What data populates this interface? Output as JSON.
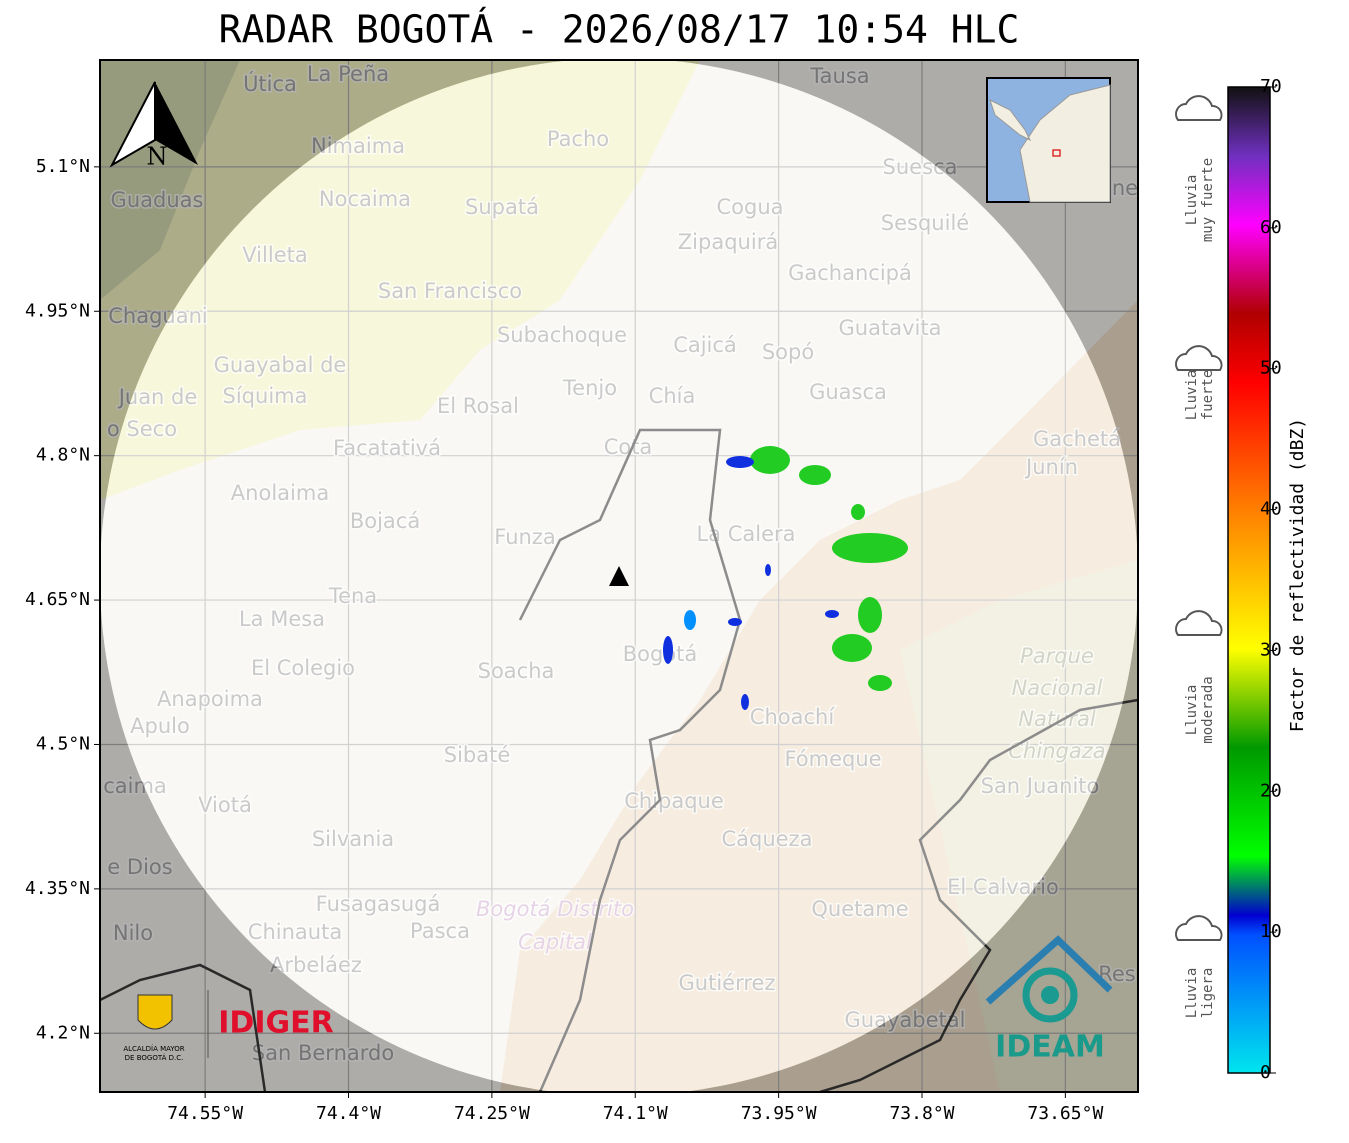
{
  "title": "RADAR BOGOTÁ - 2026/08/17 10:54 HLC",
  "map": {
    "xlim": [
      -74.66,
      -73.574
    ],
    "ylim": [
      4.139,
      5.211
    ],
    "grid": true,
    "xticks": [
      {
        "value": -74.55,
        "label": "74.55°W"
      },
      {
        "value": -74.4,
        "label": "74.4°W"
      },
      {
        "value": -74.25,
        "label": "74.25°W"
      },
      {
        "value": -74.1,
        "label": "74.1°W"
      },
      {
        "value": -73.95,
        "label": "73.95°W"
      },
      {
        "value": -73.8,
        "label": "73.8°W"
      },
      {
        "value": -73.65,
        "label": "73.65°W"
      }
    ],
    "yticks": [
      {
        "value": 5.1,
        "label": "5.1°N"
      },
      {
        "value": 4.95,
        "label": "4.95°N"
      },
      {
        "value": 4.8,
        "label": "4.8°N"
      },
      {
        "value": 4.65,
        "label": "4.65°N"
      },
      {
        "value": 4.5,
        "label": "4.5°N"
      },
      {
        "value": 4.35,
        "label": "4.35°N"
      },
      {
        "value": 4.2,
        "label": "4.2°N"
      }
    ],
    "north": "N",
    "places": [
      "Útica",
      "La Peña",
      "Tausa",
      "Pacho",
      "Nimaima",
      "Guaduas",
      "Nocaima",
      "Supatá",
      "Cogua",
      "Suesca",
      "Sesquilé",
      "Zipaquirá",
      "Villeta",
      "Gachancipá",
      "San Francisco",
      "Chaguani",
      "Guatavita",
      "Subachoque",
      "Cajicá",
      "Sopó",
      "Guayabal de",
      "Síquima",
      "Tenjo",
      "Chía",
      "Guasca",
      "Juan de",
      "o Seco",
      "El Rosal",
      "Facatativá",
      "Cota",
      "Gachetá",
      "Junín",
      "Anolaima",
      "Bojacá",
      "La Calera",
      "Funza",
      "Tena",
      "La Mesa",
      "El Colegio",
      "Soacha",
      "Bogotá",
      "Anapoima",
      "Choachí",
      "Apulo",
      "Sibaté",
      "Fómeque",
      "San Juanito",
      "caima",
      "Viotá",
      "Chipaque",
      "Silvania",
      "Cáqueza",
      "e Dios",
      "El Calvario",
      "Fusagasugá",
      "Quetame",
      "Nilo",
      "Chinauta",
      "Pasca",
      "Arbeláez",
      "Gutiérrez",
      "Res",
      "Guayabetal",
      "San Bernardo",
      "ne"
    ],
    "park": [
      "Parque",
      "Nacional",
      "Natural",
      "Chingaza"
    ],
    "district": [
      "Bogotá Distrito",
      "Capital"
    ]
  },
  "colorbar": {
    "label": "Factor de reflectividad (dBZ)",
    "ylim": [
      0,
      70
    ],
    "ticks": [
      0,
      10,
      20,
      30,
      40,
      50,
      60,
      70
    ],
    "categories": [
      [
        "Lluvia",
        "muy fuerte"
      ],
      [
        "Lluvia",
        "fuerte"
      ],
      [
        "Lluvia",
        "moderada"
      ],
      [
        "Lluvia",
        "ligera"
      ]
    ]
  },
  "logos": {
    "alcaldia": [
      "ALCALDÍA MAYOR",
      "DE BOGOTÁ D.C."
    ],
    "idiger": "IDIGER",
    "ideam": "IDEAM"
  }
}
